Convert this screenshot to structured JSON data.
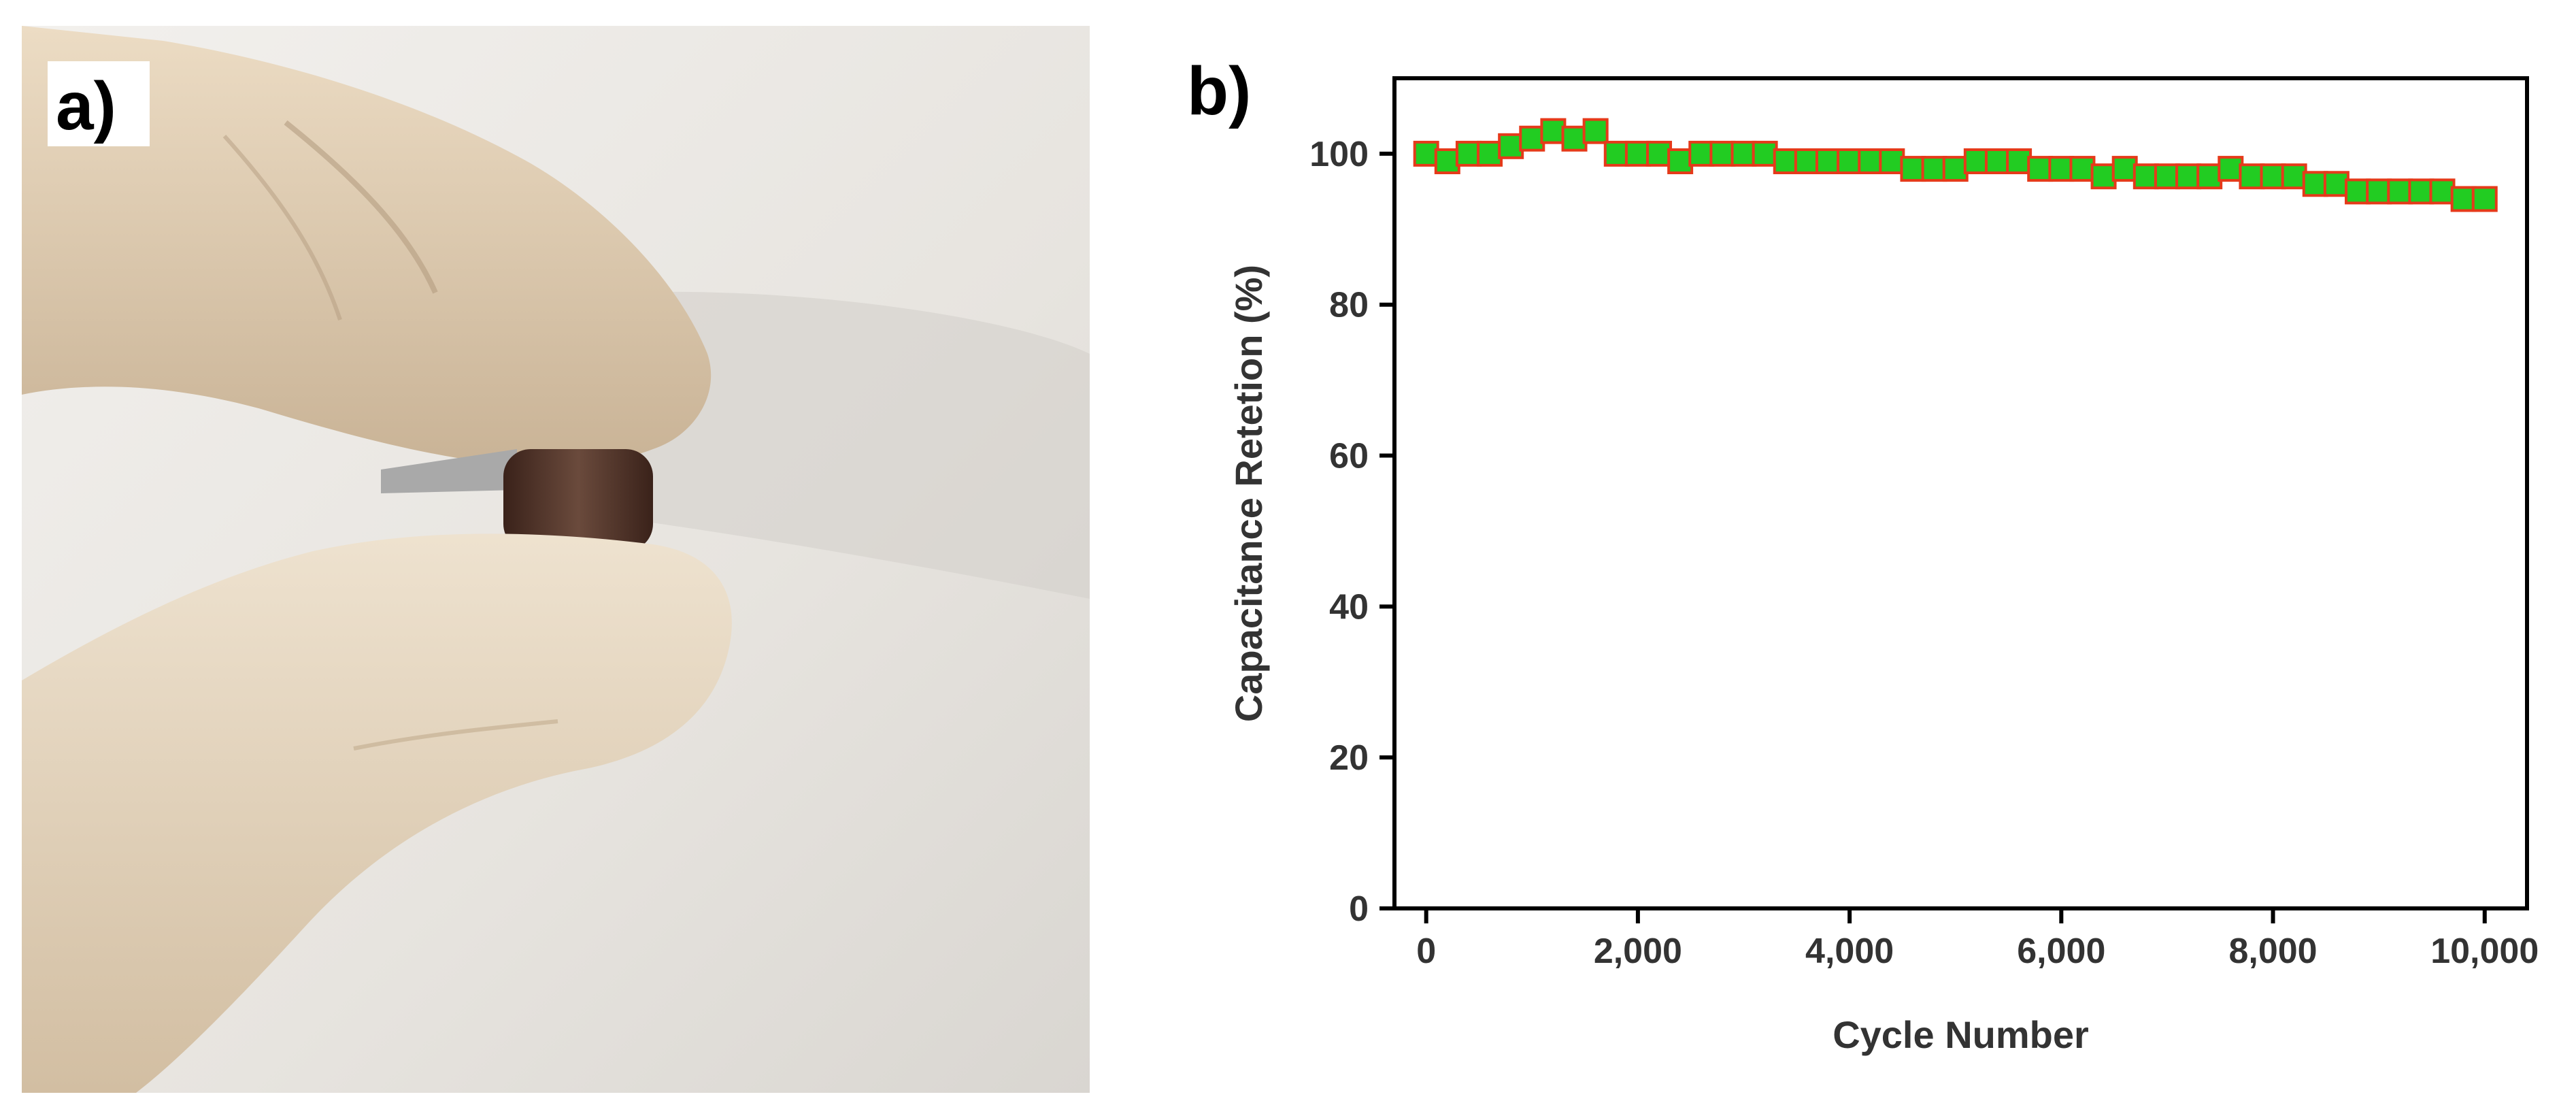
{
  "panels": {
    "a": {
      "label": "a)"
    },
    "b": {
      "label": "b)"
    }
  },
  "photo": {
    "description_icon": "gloved-fingers-holding-flexible-device-photo",
    "colors": {
      "background": "#e9e6e2",
      "glove": "#e3d2b8",
      "device": "#4a2e24"
    }
  },
  "chart_data": {
    "type": "scatter",
    "title": "",
    "xlabel": "Cycle Number",
    "ylabel": "Capacitance Retetion (%)",
    "xlim": [
      -300,
      10400
    ],
    "ylim": [
      0,
      110
    ],
    "xticks": [
      0,
      2000,
      4000,
      6000,
      8000,
      10000
    ],
    "xtick_labels": [
      "0",
      "2,000",
      "4,000",
      "6,000",
      "8,000",
      "10,000"
    ],
    "yticks": [
      0,
      20,
      40,
      60,
      80,
      100
    ],
    "ytick_labels": [
      "0",
      "20",
      "40",
      "60",
      "80",
      "100"
    ],
    "grid": false,
    "marker": {
      "shape": "square",
      "fill": "#22cc22",
      "edge": "#e53a1a"
    },
    "series": [
      {
        "x": [
          0,
          200,
          400,
          600,
          800,
          1000,
          1200,
          1400,
          1600,
          1800,
          2000,
          2200,
          2400,
          2600,
          2800,
          3000,
          3200,
          3400,
          3600,
          3800,
          4000,
          4200,
          4400,
          4600,
          4800,
          5000,
          5200,
          5400,
          5600,
          5800,
          6000,
          6200,
          6400,
          6600,
          6800,
          7000,
          7200,
          7400,
          7600,
          7800,
          8000,
          8200,
          8400,
          8600,
          8800,
          9000,
          9200,
          9400,
          9600,
          9800,
          10000
        ],
        "values": [
          100,
          99,
          100,
          100,
          101,
          102,
          103,
          102,
          103,
          100,
          100,
          100,
          99,
          100,
          100,
          100,
          100,
          99,
          99,
          99,
          99,
          99,
          99,
          98,
          98,
          98,
          99,
          99,
          99,
          98,
          98,
          98,
          97,
          98,
          97,
          97,
          97,
          97,
          98,
          97,
          97,
          97,
          96,
          96,
          95,
          95,
          95,
          95,
          95,
          94,
          94
        ]
      }
    ]
  }
}
